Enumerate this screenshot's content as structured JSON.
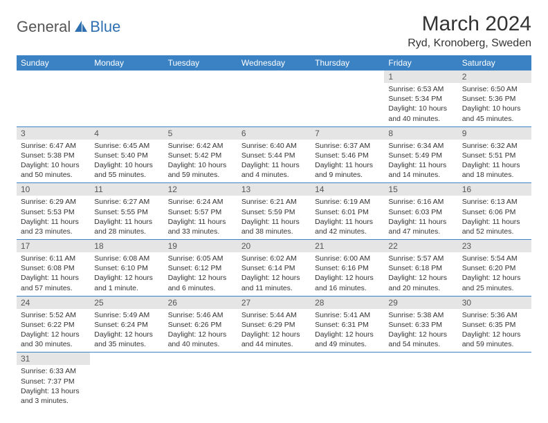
{
  "logo": {
    "text1": "General",
    "text2": "Blue"
  },
  "title": "March 2024",
  "location": "Ryd, Kronoberg, Sweden",
  "weekdays": [
    "Sunday",
    "Monday",
    "Tuesday",
    "Wednesday",
    "Thursday",
    "Friday",
    "Saturday"
  ],
  "colors": {
    "header_bg": "#3b82c4",
    "header_fg": "#ffffff",
    "daynum_bg": "#e5e5e5",
    "border": "#3b82c4",
    "logo_gray": "#555555",
    "logo_blue": "#2d6fb0"
  },
  "weeks": [
    [
      null,
      null,
      null,
      null,
      null,
      {
        "n": "1",
        "sr": "Sunrise: 6:53 AM",
        "ss": "Sunset: 5:34 PM",
        "dl": "Daylight: 10 hours and 40 minutes."
      },
      {
        "n": "2",
        "sr": "Sunrise: 6:50 AM",
        "ss": "Sunset: 5:36 PM",
        "dl": "Daylight: 10 hours and 45 minutes."
      }
    ],
    [
      {
        "n": "3",
        "sr": "Sunrise: 6:47 AM",
        "ss": "Sunset: 5:38 PM",
        "dl": "Daylight: 10 hours and 50 minutes."
      },
      {
        "n": "4",
        "sr": "Sunrise: 6:45 AM",
        "ss": "Sunset: 5:40 PM",
        "dl": "Daylight: 10 hours and 55 minutes."
      },
      {
        "n": "5",
        "sr": "Sunrise: 6:42 AM",
        "ss": "Sunset: 5:42 PM",
        "dl": "Daylight: 10 hours and 59 minutes."
      },
      {
        "n": "6",
        "sr": "Sunrise: 6:40 AM",
        "ss": "Sunset: 5:44 PM",
        "dl": "Daylight: 11 hours and 4 minutes."
      },
      {
        "n": "7",
        "sr": "Sunrise: 6:37 AM",
        "ss": "Sunset: 5:46 PM",
        "dl": "Daylight: 11 hours and 9 minutes."
      },
      {
        "n": "8",
        "sr": "Sunrise: 6:34 AM",
        "ss": "Sunset: 5:49 PM",
        "dl": "Daylight: 11 hours and 14 minutes."
      },
      {
        "n": "9",
        "sr": "Sunrise: 6:32 AM",
        "ss": "Sunset: 5:51 PM",
        "dl": "Daylight: 11 hours and 18 minutes."
      }
    ],
    [
      {
        "n": "10",
        "sr": "Sunrise: 6:29 AM",
        "ss": "Sunset: 5:53 PM",
        "dl": "Daylight: 11 hours and 23 minutes."
      },
      {
        "n": "11",
        "sr": "Sunrise: 6:27 AM",
        "ss": "Sunset: 5:55 PM",
        "dl": "Daylight: 11 hours and 28 minutes."
      },
      {
        "n": "12",
        "sr": "Sunrise: 6:24 AM",
        "ss": "Sunset: 5:57 PM",
        "dl": "Daylight: 11 hours and 33 minutes."
      },
      {
        "n": "13",
        "sr": "Sunrise: 6:21 AM",
        "ss": "Sunset: 5:59 PM",
        "dl": "Daylight: 11 hours and 38 minutes."
      },
      {
        "n": "14",
        "sr": "Sunrise: 6:19 AM",
        "ss": "Sunset: 6:01 PM",
        "dl": "Daylight: 11 hours and 42 minutes."
      },
      {
        "n": "15",
        "sr": "Sunrise: 6:16 AM",
        "ss": "Sunset: 6:03 PM",
        "dl": "Daylight: 11 hours and 47 minutes."
      },
      {
        "n": "16",
        "sr": "Sunrise: 6:13 AM",
        "ss": "Sunset: 6:06 PM",
        "dl": "Daylight: 11 hours and 52 minutes."
      }
    ],
    [
      {
        "n": "17",
        "sr": "Sunrise: 6:11 AM",
        "ss": "Sunset: 6:08 PM",
        "dl": "Daylight: 11 hours and 57 minutes."
      },
      {
        "n": "18",
        "sr": "Sunrise: 6:08 AM",
        "ss": "Sunset: 6:10 PM",
        "dl": "Daylight: 12 hours and 1 minute."
      },
      {
        "n": "19",
        "sr": "Sunrise: 6:05 AM",
        "ss": "Sunset: 6:12 PM",
        "dl": "Daylight: 12 hours and 6 minutes."
      },
      {
        "n": "20",
        "sr": "Sunrise: 6:02 AM",
        "ss": "Sunset: 6:14 PM",
        "dl": "Daylight: 12 hours and 11 minutes."
      },
      {
        "n": "21",
        "sr": "Sunrise: 6:00 AM",
        "ss": "Sunset: 6:16 PM",
        "dl": "Daylight: 12 hours and 16 minutes."
      },
      {
        "n": "22",
        "sr": "Sunrise: 5:57 AM",
        "ss": "Sunset: 6:18 PM",
        "dl": "Daylight: 12 hours and 20 minutes."
      },
      {
        "n": "23",
        "sr": "Sunrise: 5:54 AM",
        "ss": "Sunset: 6:20 PM",
        "dl": "Daylight: 12 hours and 25 minutes."
      }
    ],
    [
      {
        "n": "24",
        "sr": "Sunrise: 5:52 AM",
        "ss": "Sunset: 6:22 PM",
        "dl": "Daylight: 12 hours and 30 minutes."
      },
      {
        "n": "25",
        "sr": "Sunrise: 5:49 AM",
        "ss": "Sunset: 6:24 PM",
        "dl": "Daylight: 12 hours and 35 minutes."
      },
      {
        "n": "26",
        "sr": "Sunrise: 5:46 AM",
        "ss": "Sunset: 6:26 PM",
        "dl": "Daylight: 12 hours and 40 minutes."
      },
      {
        "n": "27",
        "sr": "Sunrise: 5:44 AM",
        "ss": "Sunset: 6:29 PM",
        "dl": "Daylight: 12 hours and 44 minutes."
      },
      {
        "n": "28",
        "sr": "Sunrise: 5:41 AM",
        "ss": "Sunset: 6:31 PM",
        "dl": "Daylight: 12 hours and 49 minutes."
      },
      {
        "n": "29",
        "sr": "Sunrise: 5:38 AM",
        "ss": "Sunset: 6:33 PM",
        "dl": "Daylight: 12 hours and 54 minutes."
      },
      {
        "n": "30",
        "sr": "Sunrise: 5:36 AM",
        "ss": "Sunset: 6:35 PM",
        "dl": "Daylight: 12 hours and 59 minutes."
      }
    ],
    [
      {
        "n": "31",
        "sr": "Sunrise: 6:33 AM",
        "ss": "Sunset: 7:37 PM",
        "dl": "Daylight: 13 hours and 3 minutes."
      },
      null,
      null,
      null,
      null,
      null,
      null
    ]
  ]
}
